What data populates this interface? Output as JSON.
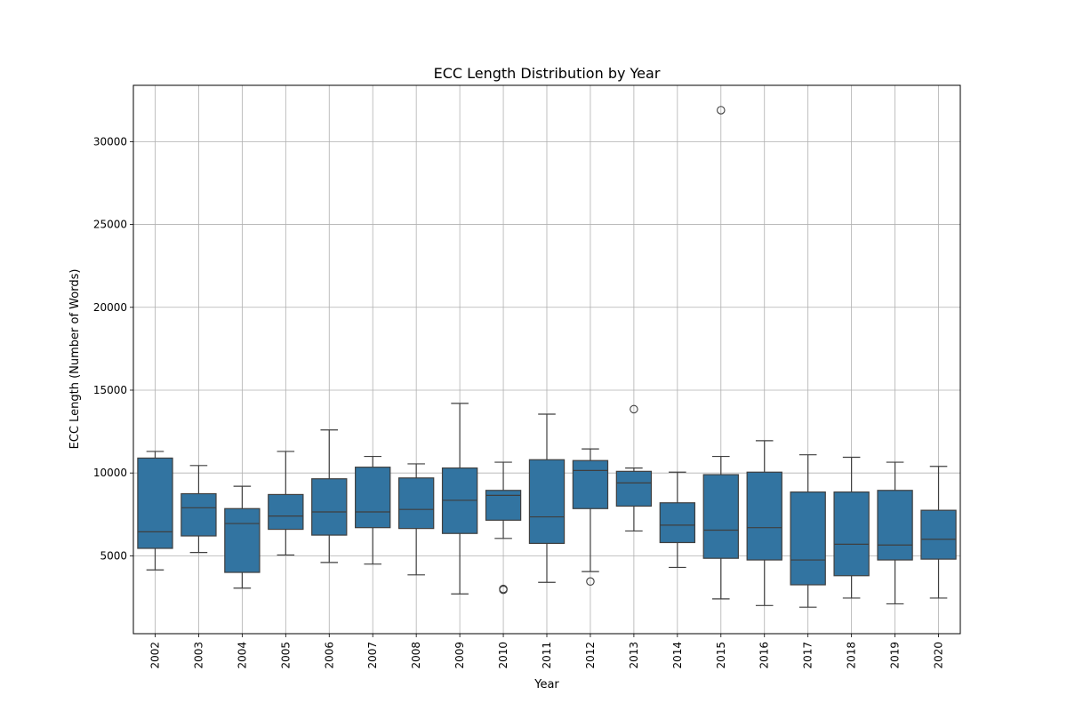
{
  "chart_data": {
    "type": "box",
    "title": "ECC Length Distribution by Year",
    "xlabel": "Year",
    "ylabel": "ECC Length (Number of Words)",
    "ylim": [
      300,
      33400
    ],
    "yticks": [
      5000,
      10000,
      15000,
      20000,
      25000,
      30000
    ],
    "grid": true,
    "colors": {
      "box": "#3274a1",
      "line": "#3f3f3f",
      "grid": "#b0b0b0"
    },
    "categories": [
      "2002",
      "2003",
      "2004",
      "2005",
      "2006",
      "2007",
      "2008",
      "2009",
      "2010",
      "2011",
      "2012",
      "2013",
      "2014",
      "2015",
      "2016",
      "2017",
      "2018",
      "2019",
      "2020"
    ],
    "boxes": [
      {
        "whislo": 4150,
        "q1": 5450,
        "med": 6450,
        "q3": 10900,
        "whishi": 11300,
        "fliers": []
      },
      {
        "whislo": 5200,
        "q1": 6200,
        "med": 7900,
        "q3": 8750,
        "whishi": 10450,
        "fliers": []
      },
      {
        "whislo": 3050,
        "q1": 4000,
        "med": 6950,
        "q3": 7850,
        "whishi": 9200,
        "fliers": []
      },
      {
        "whislo": 5050,
        "q1": 6600,
        "med": 7400,
        "q3": 8700,
        "whishi": 11300,
        "fliers": []
      },
      {
        "whislo": 4600,
        "q1": 6250,
        "med": 7650,
        "q3": 9650,
        "whishi": 12600,
        "fliers": []
      },
      {
        "whislo": 4500,
        "q1": 6700,
        "med": 7650,
        "q3": 10350,
        "whishi": 11000,
        "fliers": []
      },
      {
        "whislo": 3850,
        "q1": 6650,
        "med": 7800,
        "q3": 9700,
        "whishi": 10550,
        "fliers": []
      },
      {
        "whislo": 2700,
        "q1": 6350,
        "med": 8350,
        "q3": 10300,
        "whishi": 14200,
        "fliers": []
      },
      {
        "whislo": 6050,
        "q1": 7150,
        "med": 8650,
        "q3": 8950,
        "whishi": 10650,
        "fliers": [
          3000,
          2950
        ]
      },
      {
        "whislo": 3400,
        "q1": 5750,
        "med": 7350,
        "q3": 10800,
        "whishi": 13550,
        "fliers": []
      },
      {
        "whislo": 4050,
        "q1": 7850,
        "med": 10150,
        "q3": 10750,
        "whishi": 11450,
        "fliers": [
          3450
        ]
      },
      {
        "whislo": 6500,
        "q1": 8000,
        "med": 9400,
        "q3": 10100,
        "whishi": 10300,
        "fliers": [
          13850
        ]
      },
      {
        "whislo": 4300,
        "q1": 5800,
        "med": 6850,
        "q3": 8200,
        "whishi": 10050,
        "fliers": []
      },
      {
        "whislo": 2400,
        "q1": 4850,
        "med": 6550,
        "q3": 9900,
        "whishi": 11000,
        "fliers": [
          31900
        ]
      },
      {
        "whislo": 2000,
        "q1": 4750,
        "med": 6700,
        "q3": 10050,
        "whishi": 11950,
        "fliers": []
      },
      {
        "whislo": 1900,
        "q1": 3250,
        "med": 4750,
        "q3": 8850,
        "whishi": 11100,
        "fliers": []
      },
      {
        "whislo": 2450,
        "q1": 3800,
        "med": 5700,
        "q3": 8850,
        "whishi": 10950,
        "fliers": []
      },
      {
        "whislo": 2100,
        "q1": 4750,
        "med": 5650,
        "q3": 8950,
        "whishi": 10650,
        "fliers": []
      },
      {
        "whislo": 2450,
        "q1": 4800,
        "med": 6000,
        "q3": 7750,
        "whishi": 10400,
        "fliers": []
      }
    ]
  }
}
